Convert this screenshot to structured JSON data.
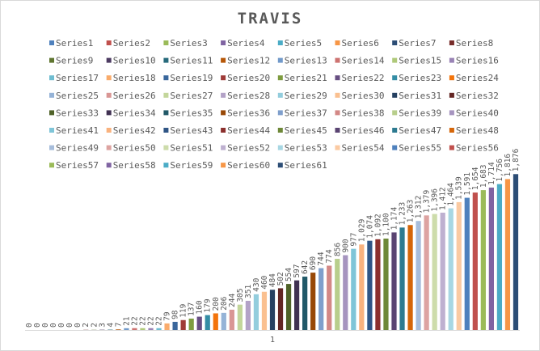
{
  "chart_data": {
    "type": "bar",
    "title": "TRAVIS",
    "categories": [
      "1"
    ],
    "xlabel": "",
    "ylabel": "",
    "ylim": [
      0,
      2200
    ],
    "grid": false,
    "legend_position": "top",
    "series": [
      {
        "name": "Series1",
        "values": [
          0
        ],
        "color": "#4F81BD"
      },
      {
        "name": "Series2",
        "values": [
          0
        ],
        "color": "#C0504D"
      },
      {
        "name": "Series3",
        "values": [
          0
        ],
        "color": "#9BBB59"
      },
      {
        "name": "Series4",
        "values": [
          0
        ],
        "color": "#8064A2"
      },
      {
        "name": "Series5",
        "values": [
          0
        ],
        "color": "#4BACC6"
      },
      {
        "name": "Series6",
        "values": [
          0
        ],
        "color": "#F79646"
      },
      {
        "name": "Series7",
        "values": [
          0
        ],
        "color": "#2C4D75"
      },
      {
        "name": "Series8",
        "values": [
          2
        ],
        "color": "#772C2A"
      },
      {
        "name": "Series9",
        "values": [
          2
        ],
        "color": "#5F7530"
      },
      {
        "name": "Series10",
        "values": [
          3
        ],
        "color": "#4D3B62"
      },
      {
        "name": "Series11",
        "values": [
          4
        ],
        "color": "#276A7C"
      },
      {
        "name": "Series12",
        "values": [
          7
        ],
        "color": "#B65708"
      },
      {
        "name": "Series13",
        "values": [
          21
        ],
        "color": "#729ACA"
      },
      {
        "name": "Series14",
        "values": [
          22
        ],
        "color": "#CD7371"
      },
      {
        "name": "Series15",
        "values": [
          22
        ],
        "color": "#AFC97A"
      },
      {
        "name": "Series16",
        "values": [
          22
        ],
        "color": "#9983B5"
      },
      {
        "name": "Series17",
        "values": [
          22
        ],
        "color": "#6FBDD1"
      },
      {
        "name": "Series18",
        "values": [
          79
        ],
        "color": "#F9AB6B"
      },
      {
        "name": "Series19",
        "values": [
          98
        ],
        "color": "#3A679C"
      },
      {
        "name": "Series20",
        "values": [
          119
        ],
        "color": "#9F3B38"
      },
      {
        "name": "Series21",
        "values": [
          137
        ],
        "color": "#7E9C40"
      },
      {
        "name": "Series22",
        "values": [
          160
        ],
        "color": "#674E82"
      },
      {
        "name": "Series23",
        "values": [
          179
        ],
        "color": "#348DA5"
      },
      {
        "name": "Series24",
        "values": [
          200
        ],
        "color": "#F3740B"
      },
      {
        "name": "Series25",
        "values": [
          206
        ],
        "color": "#95B3D7"
      },
      {
        "name": "Series26",
        "values": [
          244
        ],
        "color": "#D99694"
      },
      {
        "name": "Series27",
        "values": [
          305
        ],
        "color": "#C3D69B"
      },
      {
        "name": "Series28",
        "values": [
          351
        ],
        "color": "#B3A2C7"
      },
      {
        "name": "Series29",
        "values": [
          430
        ],
        "color": "#93CDDD"
      },
      {
        "name": "Series30",
        "values": [
          460
        ],
        "color": "#FAC090"
      },
      {
        "name": "Series31",
        "values": [
          484
        ],
        "color": "#254061"
      },
      {
        "name": "Series32",
        "values": [
          502
        ],
        "color": "#632523"
      },
      {
        "name": "Series33",
        "values": [
          554
        ],
        "color": "#4F6228"
      },
      {
        "name": "Series34",
        "values": [
          597
        ],
        "color": "#403152"
      },
      {
        "name": "Series35",
        "values": [
          642
        ],
        "color": "#215968"
      },
      {
        "name": "Series36",
        "values": [
          690
        ],
        "color": "#984807"
      },
      {
        "name": "Series37",
        "values": [
          744
        ],
        "color": "#7F9FCC"
      },
      {
        "name": "Series38",
        "values": [
          774
        ],
        "color": "#D38886"
      },
      {
        "name": "Series39",
        "values": [
          856
        ],
        "color": "#B8CE8C"
      },
      {
        "name": "Series40",
        "values": [
          900
        ],
        "color": "#A694BF"
      },
      {
        "name": "Series41",
        "values": [
          977
        ],
        "color": "#7FC5D8"
      },
      {
        "name": "Series42",
        "values": [
          1029
        ],
        "color": "#F9B27E"
      },
      {
        "name": "Series43",
        "values": [
          1074
        ],
        "color": "#2F5585"
      },
      {
        "name": "Series44",
        "values": [
          1092
        ],
        "color": "#8B302D"
      },
      {
        "name": "Series45",
        "values": [
          1100
        ],
        "color": "#6E8838"
      },
      {
        "name": "Series46",
        "values": [
          1174
        ],
        "color": "#5A4472"
      },
      {
        "name": "Series47",
        "values": [
          1233
        ],
        "color": "#2D7A90"
      },
      {
        "name": "Series48",
        "values": [
          1263
        ],
        "color": "#D56609"
      },
      {
        "name": "Series49",
        "values": [
          1312
        ],
        "color": "#A7BDDB"
      },
      {
        "name": "Series50",
        "values": [
          1379
        ],
        "color": "#DDA3A1"
      },
      {
        "name": "Series51",
        "values": [
          1396
        ],
        "color": "#CDDCAB"
      },
      {
        "name": "Series52",
        "values": [
          1412
        ],
        "color": "#BEB0D0"
      },
      {
        "name": "Series53",
        "values": [
          1464
        ],
        "color": "#A8D7E3"
      },
      {
        "name": "Series54",
        "values": [
          1539
        ],
        "color": "#FBCAA2"
      },
      {
        "name": "Series55",
        "values": [
          1591
        ],
        "color": "#4F81BD"
      },
      {
        "name": "Series56",
        "values": [
          1654
        ],
        "color": "#C0504D"
      },
      {
        "name": "Series57",
        "values": [
          1683
        ],
        "color": "#9BBB59"
      },
      {
        "name": "Series58",
        "values": [
          1714
        ],
        "color": "#8064A2"
      },
      {
        "name": "Series59",
        "values": [
          1756
        ],
        "color": "#4BACC6"
      },
      {
        "name": "Series60",
        "values": [
          1816
        ],
        "color": "#F79646"
      },
      {
        "name": "Series61",
        "values": [
          1876
        ],
        "color": "#2C4D75"
      }
    ]
  }
}
